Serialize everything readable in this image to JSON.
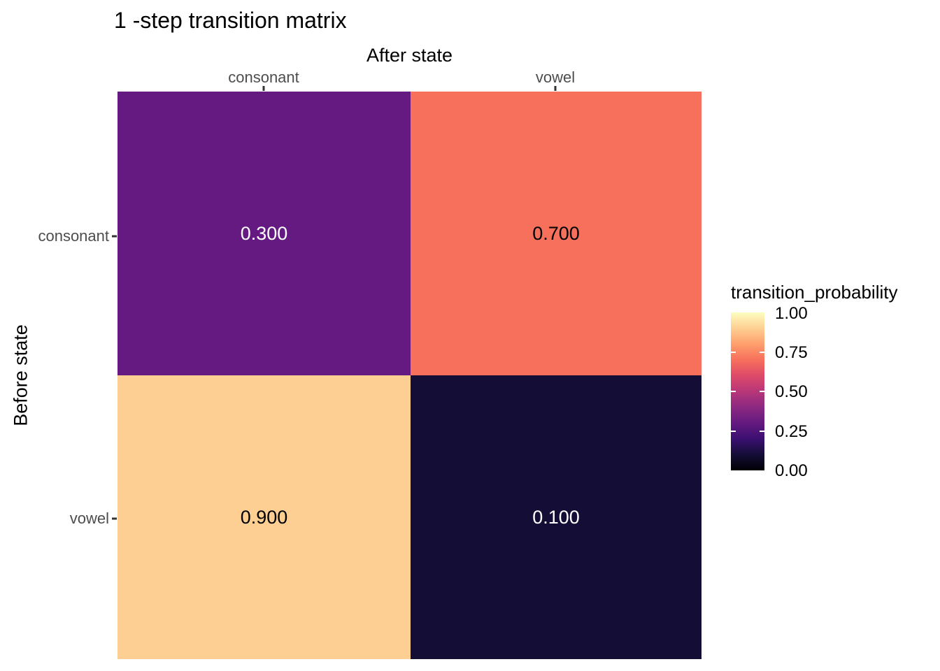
{
  "chart_data": {
    "type": "heatmap",
    "title": "1 -step transition matrix",
    "xlabel": "After state",
    "ylabel": "Before state",
    "x_categories": [
      "consonant",
      "vowel"
    ],
    "y_categories": [
      "consonant",
      "vowel"
    ],
    "values_by_row": [
      [
        0.3,
        0.7
      ],
      [
        0.9,
        0.1
      ]
    ],
    "colormap": "magma",
    "grid": false,
    "cells": [
      {
        "row": "consonant",
        "col": "consonant",
        "value": 0.3,
        "label": "0.300",
        "color": "#641a80",
        "text_color": "#ffffff"
      },
      {
        "row": "consonant",
        "col": "vowel",
        "value": 0.7,
        "label": "0.700",
        "color": "#f7705c",
        "text_color": "#000000"
      },
      {
        "row": "vowel",
        "col": "consonant",
        "value": 0.9,
        "label": "0.900",
        "color": "#fecf92",
        "text_color": "#000000"
      },
      {
        "row": "vowel",
        "col": "vowel",
        "value": 0.1,
        "label": "0.100",
        "color": "#140e36",
        "text_color": "#ffffff"
      }
    ],
    "legend": {
      "title": "transition_probability",
      "position": "right",
      "range": [
        0,
        1
      ],
      "ticks": [
        {
          "label": "1.00",
          "value": 1.0
        },
        {
          "label": "0.75",
          "value": 0.75
        },
        {
          "label": "0.50",
          "value": 0.5
        },
        {
          "label": "0.25",
          "value": 0.25
        },
        {
          "label": "0.00",
          "value": 0.0
        }
      ],
      "gradient_stops_bottom_to_top": [
        "#000004",
        "#140e36",
        "#3b0f70",
        "#641a80",
        "#8c2981",
        "#b73779",
        "#de4968",
        "#f7705c",
        "#fe9f6d",
        "#fecf92",
        "#fcfdbf"
      ]
    },
    "axis_text_color": "#4d4d4d",
    "tick_color": "#333333"
  }
}
